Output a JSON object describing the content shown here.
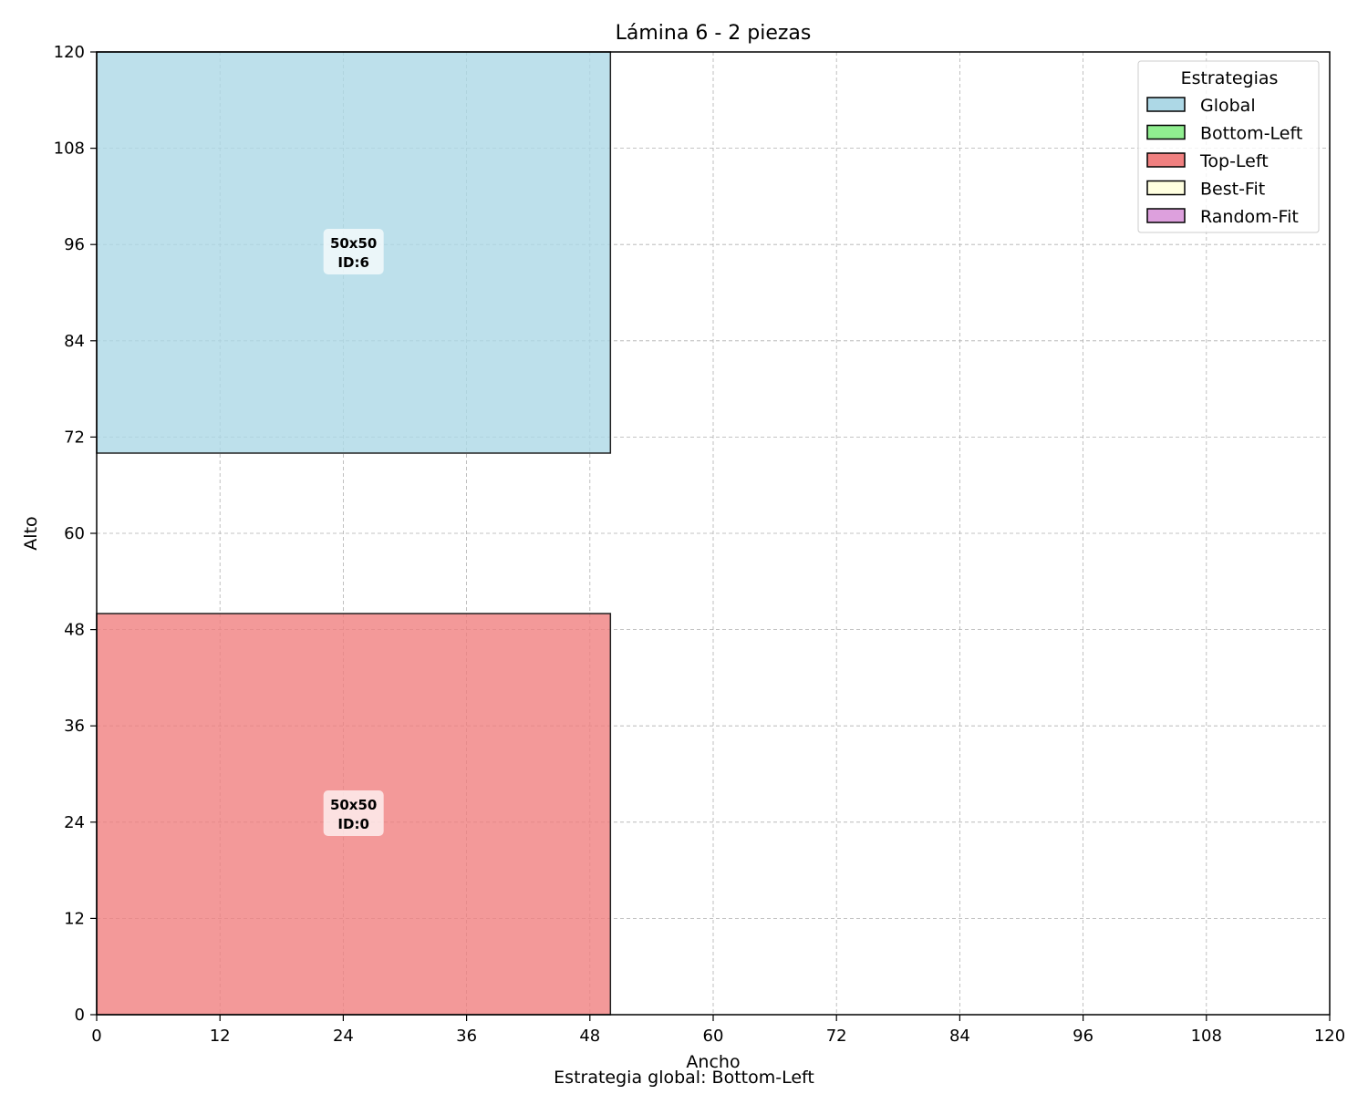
{
  "chart_data": {
    "type": "rectangles",
    "title": "Lámina 6 - 2 piezas",
    "xlabel": "Ancho",
    "ylabel": "Alto",
    "footer": "Estrategia global: Bottom-Left",
    "xlim": [
      0,
      120
    ],
    "ylim": [
      0,
      120
    ],
    "xticks": [
      0,
      12,
      24,
      36,
      48,
      60,
      72,
      84,
      96,
      108,
      120
    ],
    "yticks": [
      0,
      12,
      24,
      36,
      48,
      60,
      72,
      84,
      96,
      108,
      120
    ],
    "grid": true,
    "legend": {
      "title": "Estrategias",
      "placement": "top-right",
      "entries": [
        {
          "label": "Global",
          "color": "#add8e6"
        },
        {
          "label": "Bottom-Left",
          "color": "#90ee90"
        },
        {
          "label": "Top-Left",
          "color": "#f08080"
        },
        {
          "label": "Best-Fit",
          "color": "#ffffe0"
        },
        {
          "label": "Random-Fit",
          "color": "#dda0dd"
        }
      ]
    },
    "pieces": [
      {
        "x": 0,
        "y": 70,
        "width": 50,
        "height": 50,
        "label": "50x50",
        "id_label": "ID:6",
        "strategy": "Global",
        "color": "#add8e6"
      },
      {
        "x": 0,
        "y": 0,
        "width": 50,
        "height": 50,
        "label": "50x50",
        "id_label": "ID:0",
        "strategy": "Top-Left",
        "color": "#f08080"
      }
    ]
  }
}
